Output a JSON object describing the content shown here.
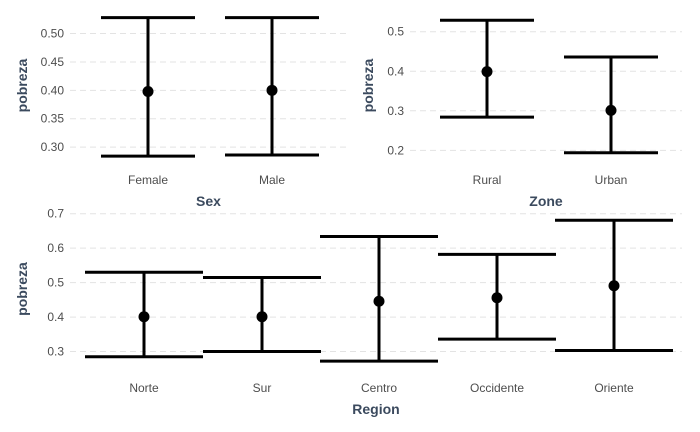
{
  "chart_data": [
    {
      "type": "errorbar",
      "xlabel": "Sex",
      "ylabel": "pobreza",
      "categories": [
        "Female",
        "Male"
      ],
      "values": [
        0.398,
        0.4
      ],
      "lower": [
        0.284,
        0.286
      ],
      "upper": [
        0.528,
        0.528
      ],
      "yticks": [
        0.3,
        0.35,
        0.4,
        0.45,
        0.5
      ],
      "ytick_labels": [
        "0.30",
        "0.35",
        "0.40",
        "0.45",
        "0.50"
      ],
      "ylim": [
        0.272,
        0.545
      ],
      "grid": true
    },
    {
      "type": "errorbar",
      "xlabel": "Zone",
      "ylabel": "pobreza",
      "categories": [
        "Rural",
        "Urban"
      ],
      "values": [
        0.399,
        0.301
      ],
      "lower": [
        0.284,
        0.194
      ],
      "upper": [
        0.529,
        0.436
      ],
      "yticks": [
        0.2,
        0.3,
        0.4,
        0.5
      ],
      "ytick_labels": [
        "0.2",
        "0.3",
        "0.4",
        "0.5"
      ],
      "ylim": [
        0.168,
        0.56
      ],
      "grid": true
    },
    {
      "type": "errorbar",
      "xlabel": "Region",
      "ylabel": "pobreza",
      "categories": [
        "Norte",
        "Sur",
        "Centro",
        "Occidente",
        "Oriente"
      ],
      "values": [
        0.401,
        0.401,
        0.446,
        0.456,
        0.491
      ],
      "lower": [
        0.285,
        0.3,
        0.272,
        0.336,
        0.303
      ],
      "upper": [
        0.53,
        0.515,
        0.634,
        0.582,
        0.681
      ],
      "yticks": [
        0.3,
        0.4,
        0.5,
        0.6,
        0.7
      ],
      "ytick_labels": [
        "0.3",
        "0.4",
        "0.5",
        "0.6",
        "0.7"
      ],
      "ylim": [
        0.258,
        0.705
      ],
      "grid": true
    }
  ]
}
